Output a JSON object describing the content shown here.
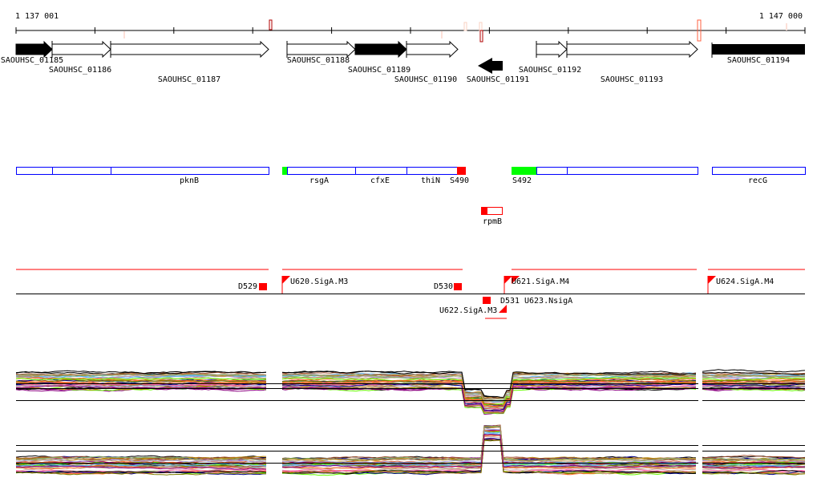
{
  "ruler": {
    "start_label": "1 137 001",
    "end_label": "1 147 000",
    "start": 1137001,
    "end": 1147000
  },
  "genes": [
    {
      "name": "SAOUHSC_01185",
      "filled": true,
      "strand": "+"
    },
    {
      "name": "SAOUHSC_01186",
      "filled": false,
      "strand": "+"
    },
    {
      "name": "SAOUHSC_01187",
      "filled": false,
      "strand": "+"
    },
    {
      "name": "SAOUHSC_01188",
      "filled": false,
      "strand": "+"
    },
    {
      "name": "SAOUHSC_01189",
      "filled": true,
      "strand": "+"
    },
    {
      "name": "SAOUHSC_01190",
      "filled": false,
      "strand": "+"
    },
    {
      "name": "SAOUHSC_01191",
      "filled": true,
      "strand": "-"
    },
    {
      "name": "SAOUHSC_01192",
      "filled": false,
      "strand": "+"
    },
    {
      "name": "SAOUHSC_01193",
      "filled": false,
      "strand": "+"
    },
    {
      "name": "SAOUHSC_01194",
      "filled": true,
      "strand": "+"
    }
  ],
  "operons": {
    "labels": [
      "pknB",
      "rsgA",
      "cfxE",
      "thiN",
      "S490",
      "S492",
      "recG",
      "rpmB"
    ]
  },
  "transcription": {
    "labels": [
      "D529",
      "U620.SigA.M3",
      "D530",
      "D531",
      "U622.SigA.M3",
      "U621.SigA.M4",
      "U623.NsigA",
      "U624.SigA.M4"
    ]
  },
  "colors": {
    "gene_outline": "#0000ff",
    "start_green": "#00ff00",
    "sigma_red": "#ff0000",
    "axis": "#000000"
  },
  "expression": {
    "series_colors": [
      "#000000",
      "#808000",
      "#ff6a2a",
      "#8b0080",
      "#66ff00",
      "#d0603a",
      "#9999dd",
      "#5ab4f0",
      "#c8a0a0",
      "#a05030",
      "#ff66aa",
      "#00008b",
      "#b8860b",
      "#7fb070",
      "#b09060"
    ]
  }
}
